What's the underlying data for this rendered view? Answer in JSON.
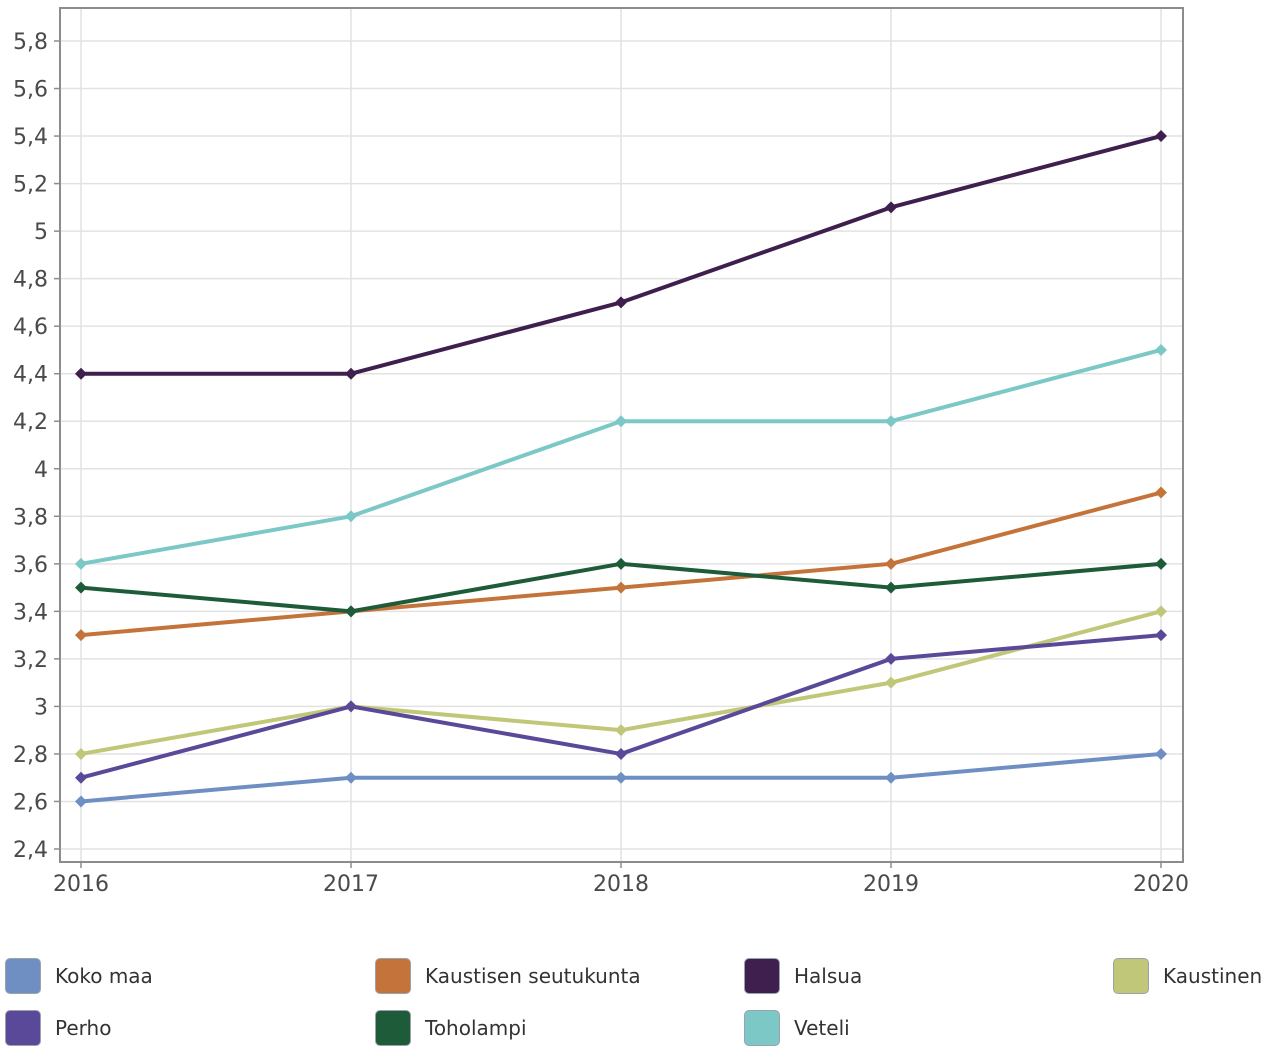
{
  "chart_data": {
    "type": "line",
    "title": "",
    "xlabel": "",
    "ylabel": "",
    "categories": [
      "2016",
      "2017",
      "2018",
      "2019",
      "2020"
    ],
    "ylim": [
      2.4,
      5.8
    ],
    "yticks": [
      "2,4",
      "2,6",
      "2,8",
      "3",
      "3,2",
      "3,4",
      "3,6",
      "3,8",
      "4",
      "4,2",
      "4,4",
      "4,6",
      "4,8",
      "5",
      "5,2",
      "5,4",
      "5,6",
      "5,8"
    ],
    "grid": true,
    "legend_position": "bottom",
    "series": [
      {
        "name": "Koko maa",
        "color": "#6f8fc2",
        "values": [
          2.6,
          2.7,
          2.7,
          2.7,
          2.8
        ]
      },
      {
        "name": "Kaustisen seutukunta",
        "color": "#c4743a",
        "values": [
          3.3,
          3.4,
          3.5,
          3.6,
          3.9
        ]
      },
      {
        "name": "Halsua",
        "color": "#3f1f4d",
        "values": [
          4.4,
          4.4,
          4.7,
          5.1,
          5.4
        ]
      },
      {
        "name": "Kaustinen",
        "color": "#c1c779",
        "values": [
          2.8,
          3.0,
          2.9,
          3.1,
          3.4
        ]
      },
      {
        "name": "Perho",
        "color": "#5a4898",
        "values": [
          2.7,
          3.0,
          2.8,
          3.2,
          3.3
        ]
      },
      {
        "name": "Toholampi",
        "color": "#1d5b39",
        "values": [
          3.5,
          3.4,
          3.6,
          3.5,
          3.6
        ]
      },
      {
        "name": "Veteli",
        "color": "#7cc8c6",
        "values": [
          3.6,
          3.8,
          4.2,
          4.2,
          4.5
        ]
      }
    ]
  }
}
